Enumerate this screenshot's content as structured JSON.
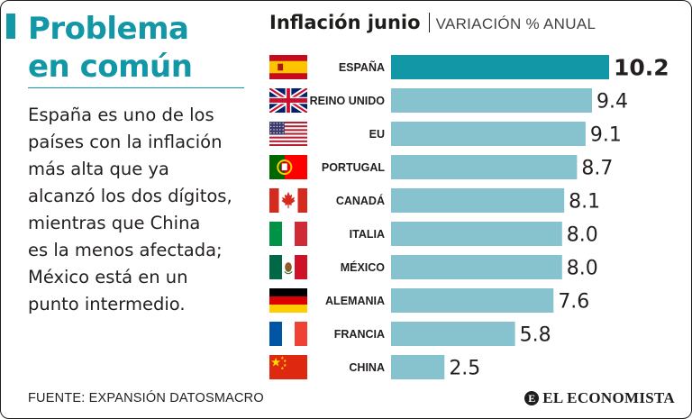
{
  "headline": {
    "line1": "Problema",
    "line2": "en común"
  },
  "description": [
    "España es uno de los",
    "países con la inflación",
    "más alta que ya",
    "alcanzó los dos dígitos,",
    "mientras que China",
    "es la menos afectada;",
    "México está en un",
    "punto intermedio."
  ],
  "source": "FUENTE: EXPANSIÓN DATOSMACRO",
  "brand": {
    "mark": "E",
    "name": "EL ECONOMISTA"
  },
  "colors": {
    "accent": "#1297a6",
    "highlight_bar": "#1297a6",
    "bar": "#87c3cf",
    "text": "#231f20"
  },
  "chart_data": {
    "type": "bar",
    "orientation": "horizontal",
    "title": "Inflación junio",
    "subtitle": "VARIACIÓN % ANUAL",
    "xlim": [
      0,
      10.2
    ],
    "categories": [
      "ESPAÑA",
      "REINO UNIDO",
      "EU",
      "PORTUGAL",
      "CANADÁ",
      "ITALIA",
      "MÉXICO",
      "ALEMANIA",
      "FRANCIA",
      "CHINA"
    ],
    "values": [
      10.2,
      9.4,
      9.1,
      8.7,
      8.1,
      8.0,
      8.0,
      7.6,
      5.8,
      2.5
    ],
    "value_labels": [
      "10.2",
      "9.4",
      "9.1",
      "8.7",
      "8.1",
      "8.0",
      "8.0",
      "7.6",
      "5.8",
      "2.5"
    ],
    "flags": [
      "spain-flag-icon",
      "uk-flag-icon",
      "usa-flag-icon",
      "portugal-flag-icon",
      "canada-flag-icon",
      "italy-flag-icon",
      "mexico-flag-icon",
      "germany-flag-icon",
      "france-flag-icon",
      "china-flag-icon"
    ],
    "highlight_index": 0
  }
}
